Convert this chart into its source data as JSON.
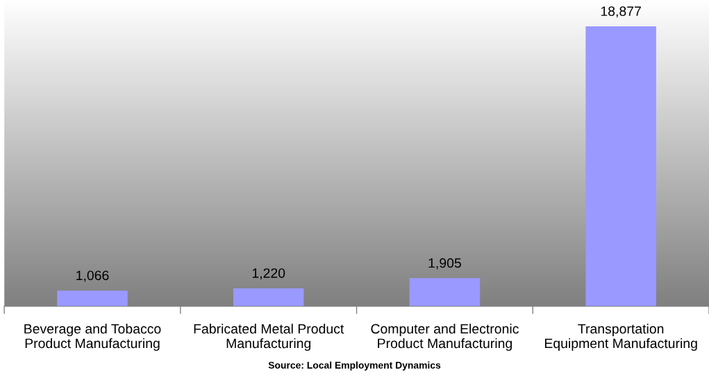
{
  "chart_data": {
    "type": "bar",
    "categories": [
      "Beverage and Tobacco\nProduct Manufacturing",
      "Fabricated Metal Product\nManufacturing",
      "Computer and Electronic\nProduct Manufacturing",
      "Transportation\nEquipment Manufacturing"
    ],
    "values": [
      1066,
      1220,
      1905,
      18877
    ],
    "color": "#9999ff",
    "data_labels": true,
    "value_labels": [
      "1,066",
      "1,220",
      "1,905",
      "18,877"
    ],
    "grid": false,
    "legend": false,
    "annotations": [
      "Source: Local Employment Dynamics"
    ]
  }
}
